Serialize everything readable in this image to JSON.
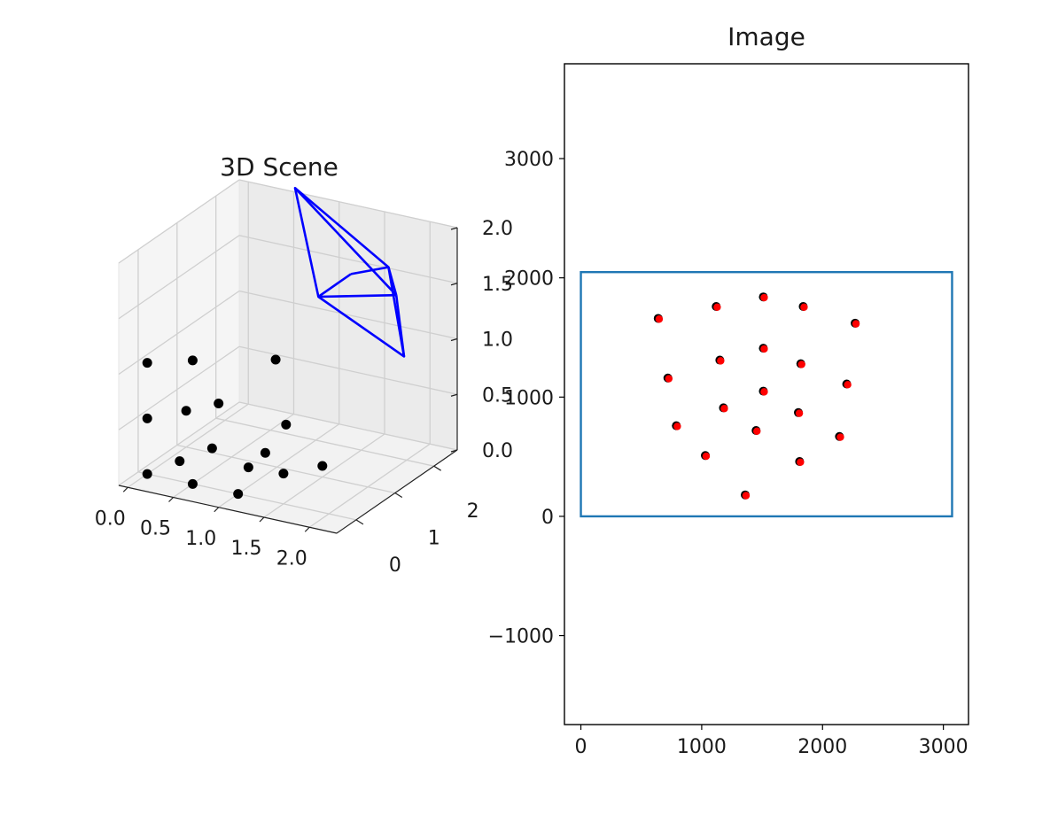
{
  "chart_data": [
    {
      "type": "scatter",
      "title": "3D Scene",
      "projection": "3d",
      "grid": true,
      "axes": {
        "x": {
          "ticks": [
            "0.0",
            "0.5",
            "1.0",
            "1.5",
            "2.0"
          ],
          "lim": [
            -0.1,
            2.3
          ]
        },
        "y": {
          "ticks": [
            "0",
            "1",
            "2"
          ],
          "lim": [
            -0.5,
            2.6
          ]
        },
        "z": {
          "ticks": [
            "0.0",
            "0.5",
            "1.0",
            "1.5",
            "2.0"
          ],
          "lim": [
            0.0,
            2.0
          ]
        }
      },
      "points": [
        [
          0.0,
          0.0,
          0.0
        ],
        [
          0.0,
          0.0,
          0.5
        ],
        [
          0.0,
          0.0,
          1.0
        ],
        [
          0.25,
          0.25,
          0.1
        ],
        [
          0.3,
          0.3,
          0.55
        ],
        [
          0.35,
          0.35,
          1.0
        ],
        [
          0.5,
          0.0,
          0.0
        ],
        [
          0.5,
          0.5,
          0.2
        ],
        [
          0.55,
          0.55,
          0.6
        ],
        [
          0.9,
          0.5,
          0.1
        ],
        [
          1.0,
          0.0,
          0.0
        ],
        [
          1.0,
          0.7,
          0.2
        ],
        [
          1.2,
          0.7,
          0.05
        ],
        [
          1.1,
          1.0,
          0.4
        ],
        [
          0.9,
          1.2,
          0.9
        ],
        [
          1.5,
          1.0,
          0.1
        ]
      ],
      "camera": {
        "color": "#0000ff",
        "vertices": {
          "center": [
            1.8,
            2.2,
            1.4
          ],
          "corners": [
            [
              0.6,
              2.4,
              2.1
            ],
            [
              1.8,
              2.0,
              1.7
            ],
            [
              1.8,
              2.4,
              0.8
            ],
            [
              0.9,
              2.3,
              1.2
            ]
          ],
          "inner": [
            [
              1.3,
              2.2,
              1.5
            ]
          ]
        }
      },
      "point_color": "#000000"
    },
    {
      "type": "scatter",
      "title": "Image",
      "grid": false,
      "xlim": [
        -136,
        3208
      ],
      "ylim": [
        -1746,
        3795
      ],
      "xticks": [
        "0",
        "1000",
        "2000",
        "3000"
      ],
      "yticks": [
        "−1000",
        "0",
        "1000",
        "2000",
        "3000"
      ],
      "rect": {
        "x": [
          0,
          3072
        ],
        "y": [
          0,
          2048
        ],
        "color": "#1f77b4"
      },
      "series": [
        {
          "color": "#000000",
          "x": [
            640,
            1120,
            1510,
            1840,
            2270,
            720,
            1150,
            1510,
            1820,
            2200,
            1180,
            1510,
            1800,
            790,
            1450,
            2140,
            1030,
            1810,
            1360
          ],
          "y": [
            1660,
            1760,
            1840,
            1760,
            1620,
            1160,
            1310,
            1410,
            1280,
            1110,
            910,
            1050,
            870,
            760,
            720,
            670,
            510,
            460,
            180
          ]
        },
        {
          "color": "#ff0000",
          "x": [
            648,
            1128,
            1517,
            1847,
            2277,
            728,
            1157,
            1517,
            1827,
            2208,
            1187,
            1517,
            1808,
            798,
            1457,
            2148,
            1037,
            1817,
            1367
          ],
          "y": [
            1654,
            1754,
            1834,
            1754,
            1614,
            1154,
            1304,
            1404,
            1274,
            1104,
            904,
            1044,
            864,
            754,
            714,
            664,
            504,
            454,
            174
          ]
        }
      ]
    }
  ]
}
